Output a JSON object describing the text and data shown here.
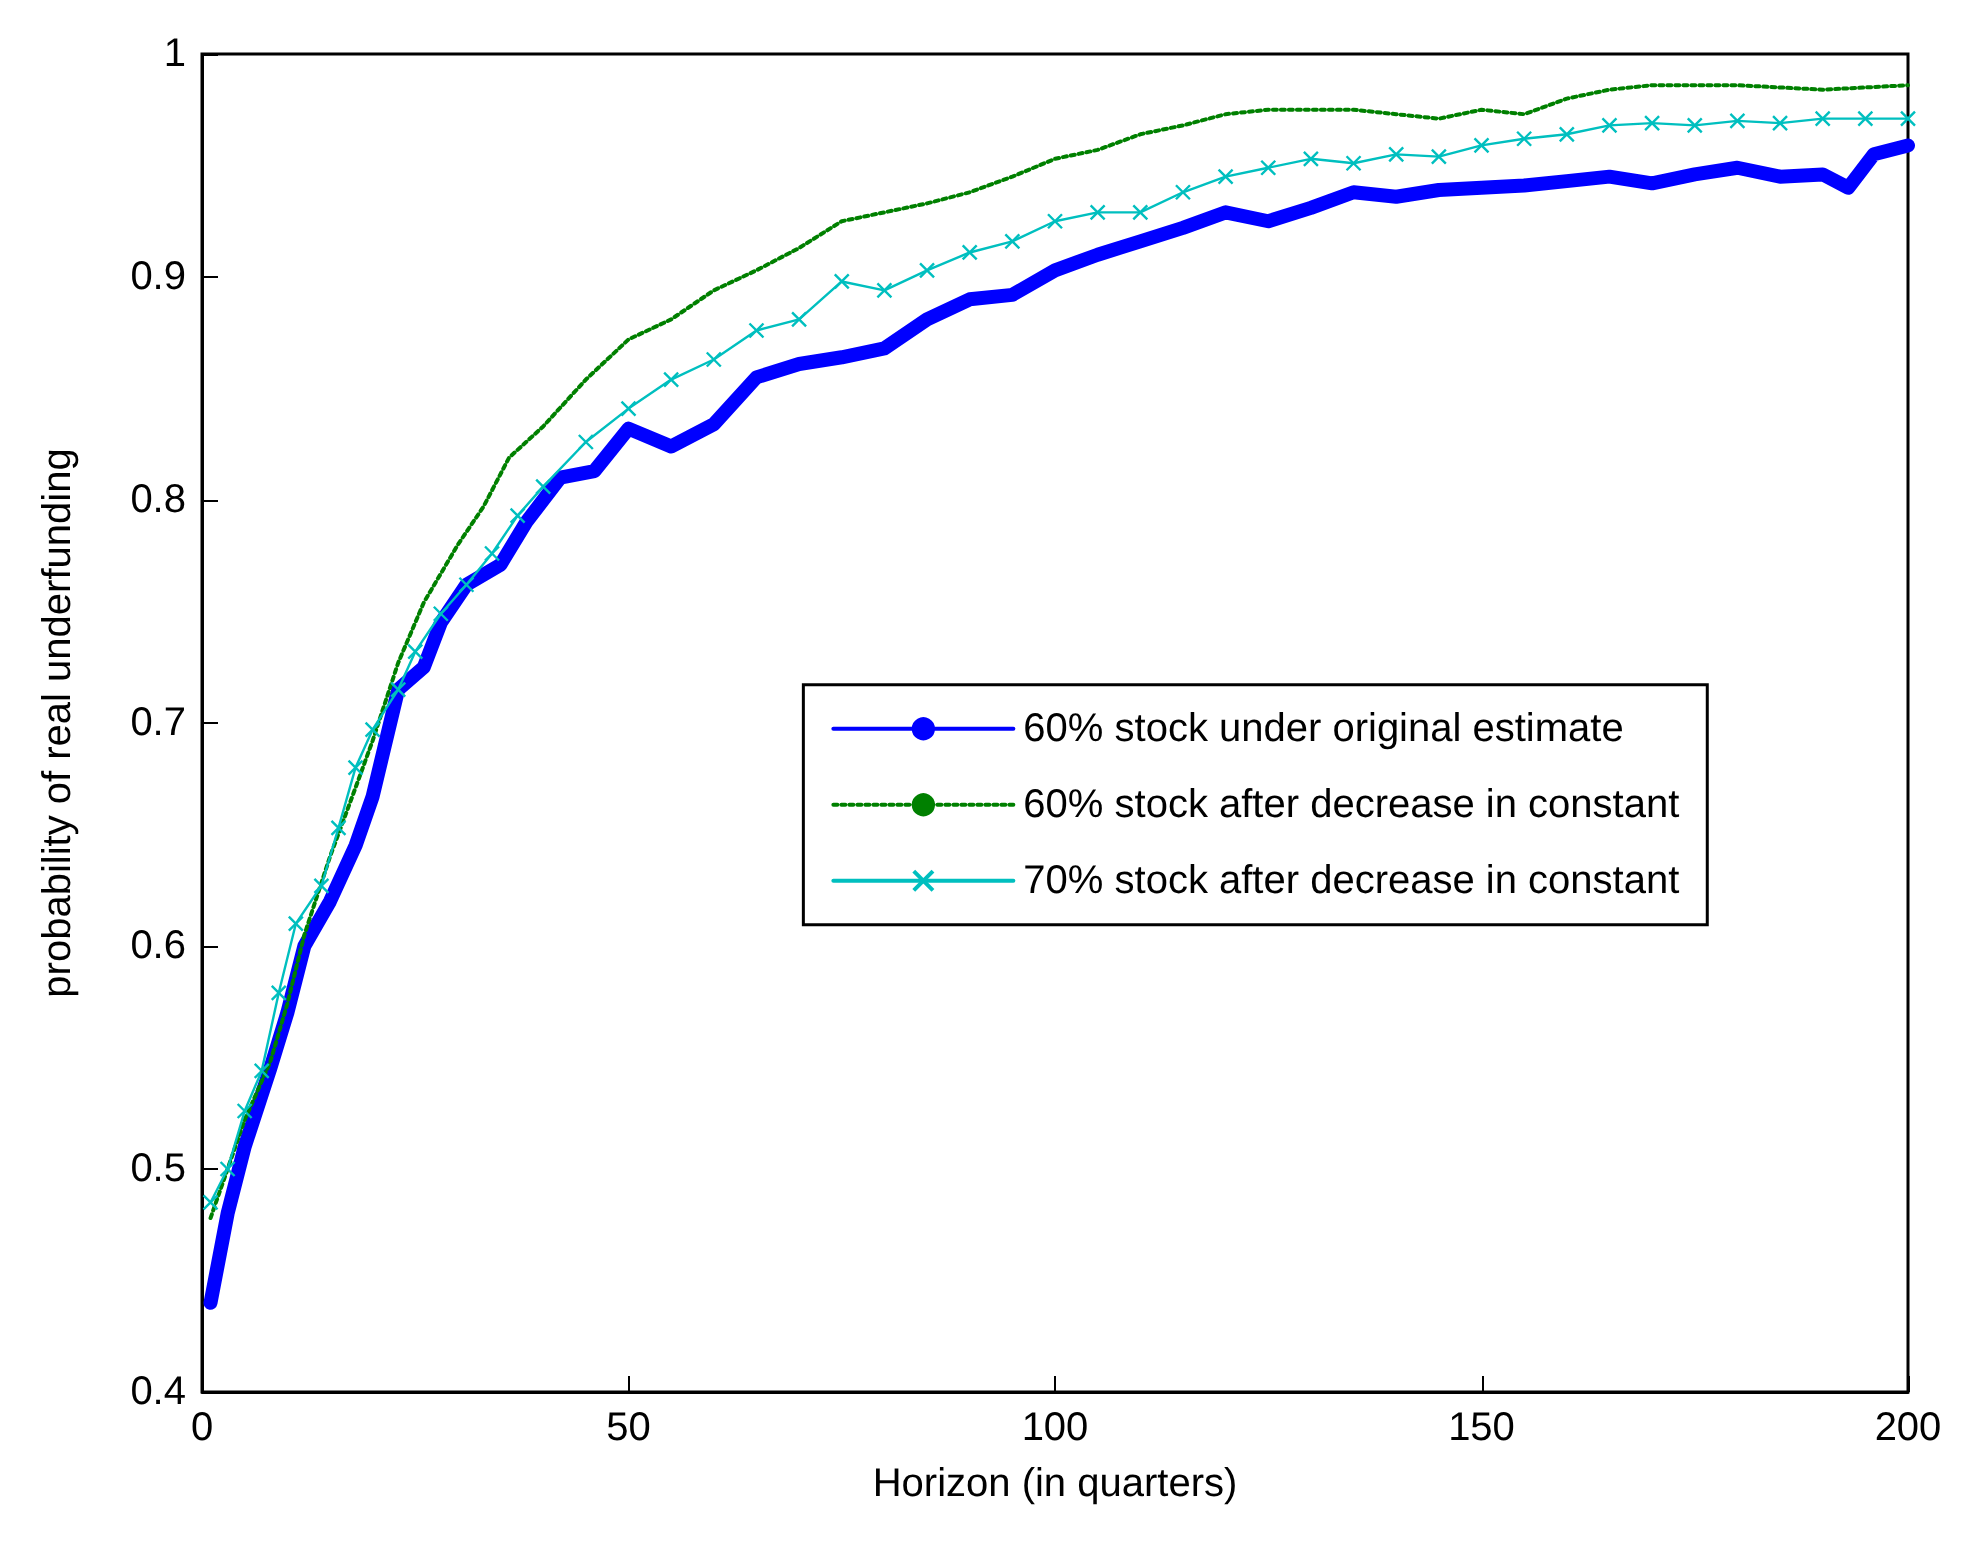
{
  "chart_data": {
    "type": "line",
    "xlabel": "Horizon (in quarters)",
    "ylabel": "probability of real underfunding",
    "xlim": [
      0,
      200
    ],
    "xticks": [
      0,
      50,
      100,
      150,
      200
    ],
    "ylim": [
      0.4,
      1
    ],
    "yticks": [
      0.4,
      0.5,
      0.6,
      0.7,
      0.8,
      0.9,
      1
    ],
    "grid": false,
    "legend": "right",
    "series": [
      {
        "name": "60% stock under original estimate",
        "color": "#0000ff",
        "marker": "none",
        "line_style": "solid",
        "x": [
          1,
          3,
          5,
          8,
          10,
          12,
          15,
          18,
          20,
          23,
          26,
          28,
          31,
          35,
          38,
          42,
          46,
          50,
          55,
          60,
          65,
          70,
          75,
          80,
          85,
          90,
          95,
          100,
          105,
          110,
          115,
          120,
          125,
          130,
          135,
          140,
          145,
          150,
          155,
          160,
          165,
          170,
          175,
          180,
          185,
          190,
          193,
          196,
          200
        ],
        "values": [
          0.44,
          0.48,
          0.51,
          0.545,
          0.57,
          0.6,
          0.62,
          0.645,
          0.667,
          0.715,
          0.725,
          0.745,
          0.762,
          0.771,
          0.79,
          0.81,
          0.813,
          0.832,
          0.824,
          0.834,
          0.855,
          0.861,
          0.864,
          0.868,
          0.881,
          0.89,
          0.892,
          0.903,
          0.91,
          0.916,
          0.922,
          0.929,
          0.925,
          0.931,
          0.938,
          0.936,
          0.939,
          0.94,
          0.941,
          0.943,
          0.945,
          0.942,
          0.946,
          0.949,
          0.945,
          0.946,
          0.94,
          0.955,
          0.959
        ]
      },
      {
        "name": "60% stock after decrease in constant",
        "color": "#008000",
        "marker": "none",
        "line_style": "dotted",
        "x": [
          1,
          3,
          5,
          8,
          10,
          12,
          15,
          18,
          20,
          23,
          26,
          30,
          33,
          36,
          40,
          45,
          50,
          55,
          60,
          65,
          70,
          75,
          80,
          85,
          90,
          95,
          100,
          105,
          110,
          115,
          120,
          125,
          130,
          135,
          140,
          145,
          150,
          155,
          160,
          165,
          170,
          175,
          180,
          185,
          190,
          195,
          200
        ],
        "values": [
          0.478,
          0.5,
          0.522,
          0.548,
          0.574,
          0.605,
          0.64,
          0.671,
          0.692,
          0.727,
          0.754,
          0.78,
          0.797,
          0.819,
          0.833,
          0.854,
          0.872,
          0.881,
          0.894,
          0.903,
          0.913,
          0.925,
          0.929,
          0.933,
          0.938,
          0.945,
          0.953,
          0.957,
          0.964,
          0.968,
          0.973,
          0.975,
          0.975,
          0.975,
          0.973,
          0.971,
          0.975,
          0.973,
          0.98,
          0.984,
          0.986,
          0.986,
          0.986,
          0.985,
          0.984,
          0.985,
          0.986
        ]
      },
      {
        "name": "70% stock after decrease in constant",
        "color": "#00bfbf",
        "marker": "cross",
        "line_style": "solid",
        "x": [
          1,
          3,
          5,
          7,
          9,
          11,
          14,
          16,
          18,
          20,
          23,
          25,
          28,
          31,
          34,
          37,
          40,
          45,
          50,
          55,
          60,
          65,
          70,
          75,
          80,
          85,
          90,
          95,
          100,
          105,
          110,
          115,
          120,
          125,
          130,
          135,
          140,
          145,
          150,
          155,
          160,
          165,
          170,
          175,
          180,
          185,
          190,
          195,
          200
        ],
        "values": [
          0.485,
          0.5,
          0.526,
          0.544,
          0.579,
          0.61,
          0.627,
          0.653,
          0.68,
          0.697,
          0.715,
          0.732,
          0.749,
          0.762,
          0.776,
          0.793,
          0.806,
          0.826,
          0.841,
          0.854,
          0.863,
          0.876,
          0.881,
          0.898,
          0.894,
          0.903,
          0.911,
          0.916,
          0.925,
          0.929,
          0.929,
          0.938,
          0.945,
          0.949,
          0.953,
          0.951,
          0.955,
          0.954,
          0.959,
          0.962,
          0.964,
          0.968,
          0.969,
          0.968,
          0.97,
          0.969,
          0.971,
          0.971,
          0.971
        ]
      }
    ]
  }
}
